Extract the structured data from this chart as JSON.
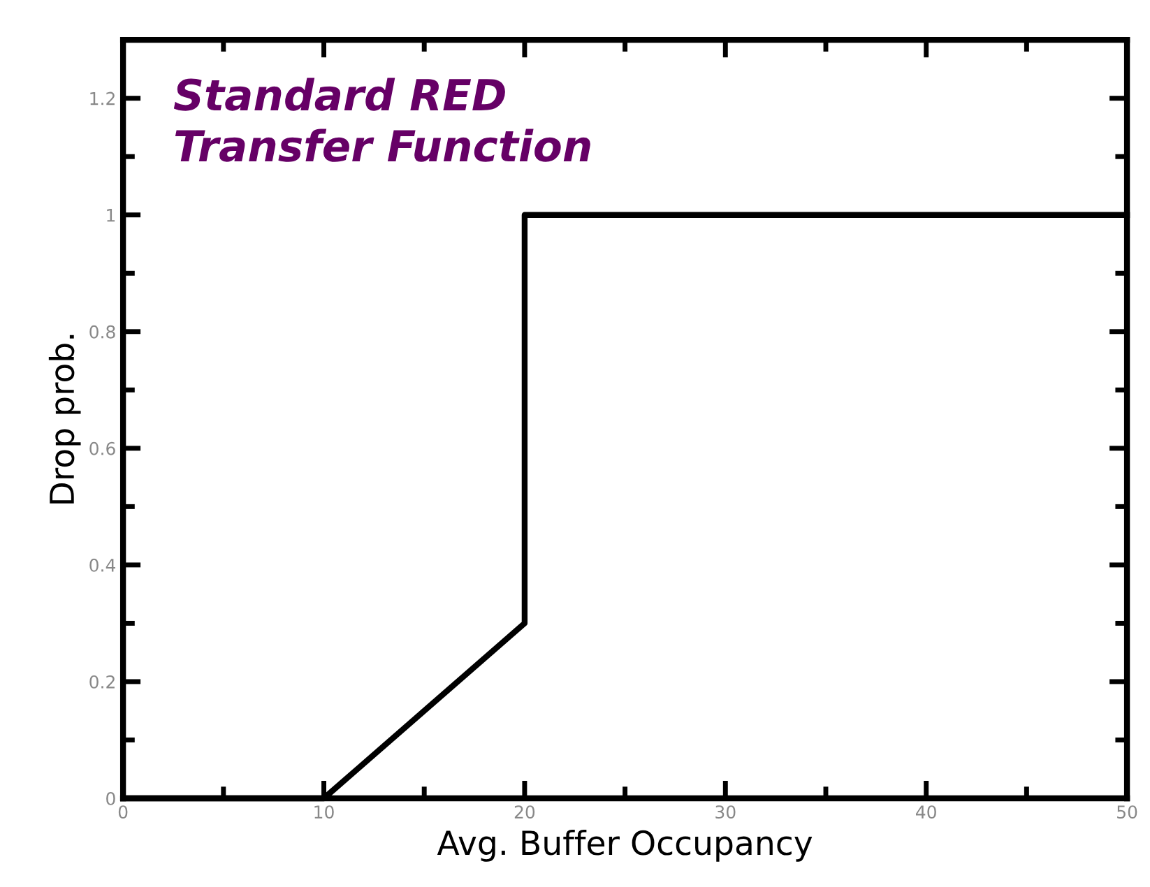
{
  "chart_data": {
    "type": "line",
    "title": "Standard RED\nTransfer Function",
    "xlabel": "Avg. Buffer Occupancy",
    "ylabel": "Drop prob.",
    "x": [
      0,
      10,
      20,
      20,
      50
    ],
    "series": [
      {
        "color": "#000000",
        "values": [
          0,
          0,
          0.3,
          1,
          1
        ]
      }
    ],
    "xlim": [
      0,
      50
    ],
    "ylim": [
      0,
      1.3
    ],
    "xticks": [
      0,
      10,
      20,
      30,
      40,
      50
    ],
    "yticks": [
      0,
      0.2,
      0.4,
      0.6,
      0.8,
      1,
      1.2
    ],
    "grid": false,
    "legend": false,
    "marker": "none",
    "line_style": "solid"
  }
}
